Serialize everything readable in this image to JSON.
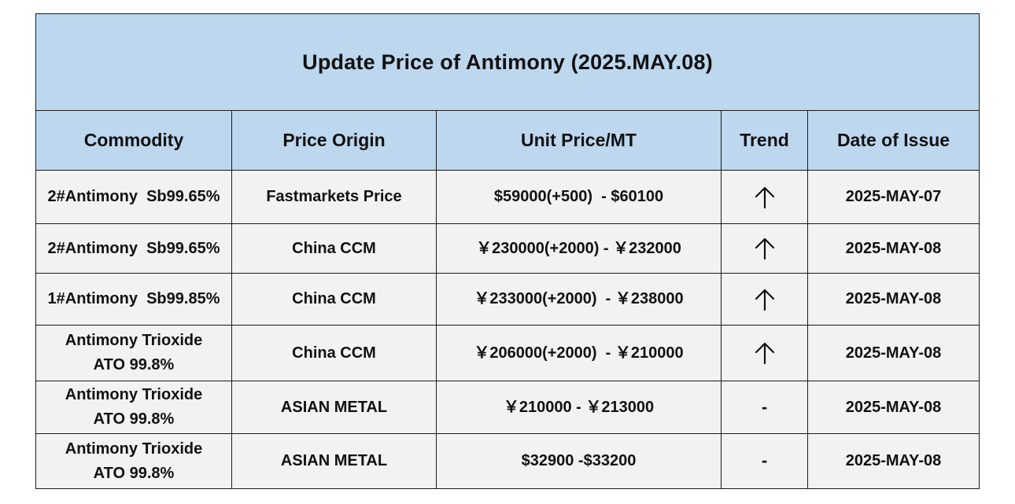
{
  "title": "Update Price of Antimony (2025.MAY.08)",
  "columns": [
    "Commodity",
    "Price Origin",
    "Unit Price/MT",
    "Trend",
    "Date of Issue"
  ],
  "rows": [
    {
      "commodity": [
        "2#Antimony  Sb99.65%"
      ],
      "origin": "Fastmarkets Price",
      "price": "$59000(+500)  - $60100",
      "trend": "up",
      "trend_icon": "arrow-up-icon",
      "date": "2025-MAY-07"
    },
    {
      "commodity": [
        "2#Antimony  Sb99.65%"
      ],
      "origin": "China CCM",
      "price": "￥230000(+2000) - ￥232000",
      "trend": "up",
      "trend_icon": "arrow-up-icon",
      "date": "2025-MAY-08"
    },
    {
      "commodity": [
        "1#Antimony  Sb99.85%"
      ],
      "origin": "China CCM",
      "price": "￥233000(+2000)  - ￥238000",
      "trend": "up",
      "trend_icon": "arrow-up-icon",
      "date": "2025-MAY-08"
    },
    {
      "commodity": [
        "Antimony Trioxide",
        "ATO 99.8%"
      ],
      "origin": "China CCM",
      "price": "￥206000(+2000)  - ￥210000",
      "trend": "up",
      "trend_icon": "arrow-up-icon",
      "date": "2025-MAY-08"
    },
    {
      "commodity": [
        "Antimony Trioxide",
        "ATO 99.8%"
      ],
      "origin": "ASIAN METAL",
      "price": "￥210000 - ￥213000",
      "trend": "-",
      "trend_icon": "dash-icon",
      "date": "2025-MAY-08"
    },
    {
      "commodity": [
        "Antimony Trioxide",
        "ATO 99.8%"
      ],
      "origin": "ASIAN METAL",
      "price": "$32900 -$33200",
      "trend": "-",
      "trend_icon": "dash-icon",
      "date": "2025-MAY-08"
    }
  ],
  "colors": {
    "header_bg": "#bdd7ee",
    "body_bg": "#f2f2f2",
    "border": "#1a1a1a"
  }
}
